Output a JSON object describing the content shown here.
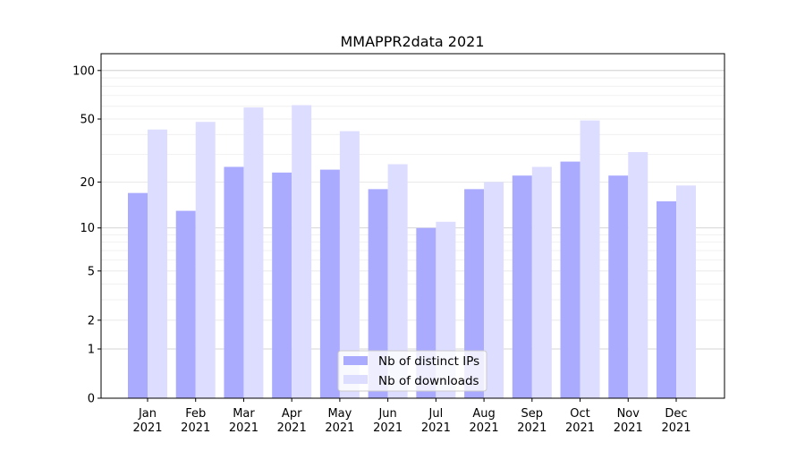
{
  "chart_data": {
    "type": "bar",
    "title": "MMAPPR2data 2021",
    "xlabel": "",
    "ylabel": "",
    "yscale": "log(1+y)",
    "ylim": [
      0,
      127
    ],
    "yticks": [
      0,
      1,
      2,
      5,
      10,
      20,
      50,
      100
    ],
    "grid": true,
    "legend_position": "bottom-center",
    "categories": [
      "Jan\n2021",
      "Feb\n2021",
      "Mar\n2021",
      "Apr\n2021",
      "May\n2021",
      "Jun\n2021",
      "Jul\n2021",
      "Aug\n2021",
      "Sep\n2021",
      "Oct\n2021",
      "Nov\n2021",
      "Dec\n2021"
    ],
    "series": [
      {
        "name": "Nb of distinct IPs",
        "color": "#aaaaff",
        "values": [
          17,
          13,
          25,
          23,
          24,
          18,
          10,
          18,
          22,
          27,
          22,
          15
        ]
      },
      {
        "name": "Nb of downloads",
        "color": "#ddddff",
        "values": [
          43,
          48,
          59,
          61,
          42,
          26,
          11,
          20,
          25,
          49,
          31,
          19
        ]
      }
    ]
  }
}
